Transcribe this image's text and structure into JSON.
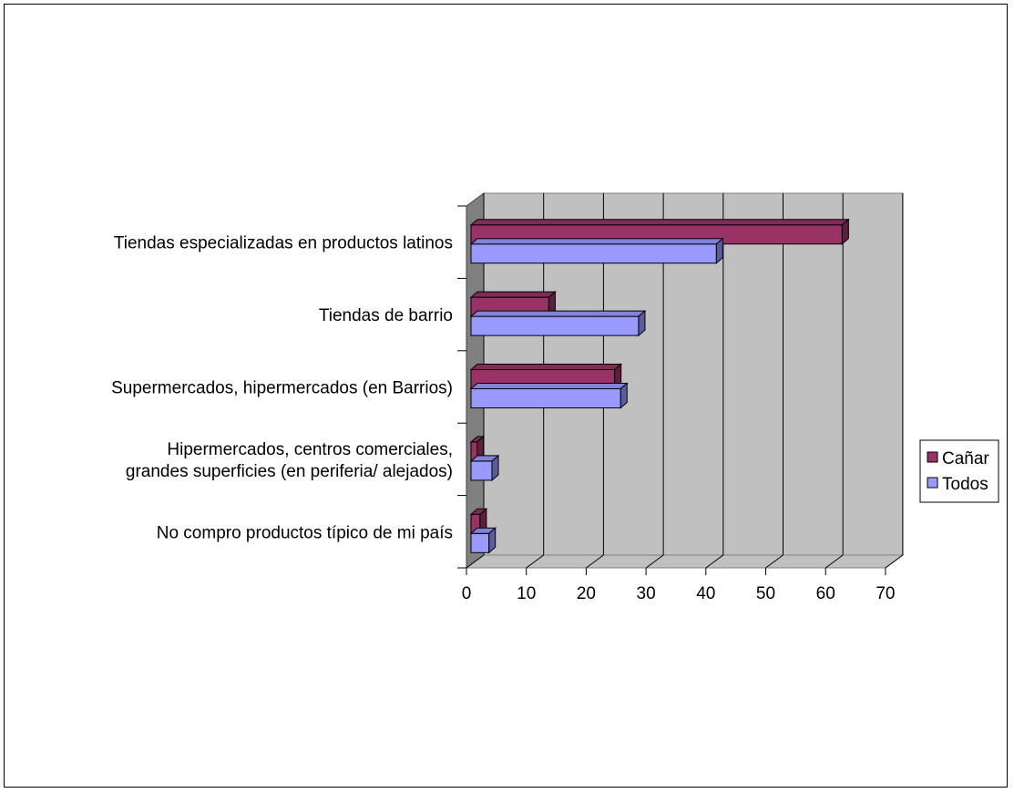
{
  "chart_data": {
    "type": "bar",
    "orientation": "horizontal",
    "three_d": true,
    "categories": [
      "Tiendas especializadas en productos latinos",
      "Tiendas de barrio",
      "Supermercados, hipermercados (en Barrios)",
      "Hipermercados, centros comerciales,\ngrandes superficies (en periferia/ alejados)",
      "No compro productos típico de mi país"
    ],
    "series": [
      {
        "name": "Cañar",
        "color": "#993366",
        "values": [
          62,
          13,
          24,
          1,
          1.5
        ]
      },
      {
        "name": "Todos",
        "color": "#9999FF",
        "values": [
          41,
          28,
          25,
          3.5,
          3
        ]
      }
    ],
    "xlim": [
      0,
      70
    ],
    "xticks": [
      0,
      10,
      20,
      30,
      40,
      50,
      60,
      70
    ],
    "grid": true,
    "wall_color": "#C0C0C0",
    "legend": "right"
  }
}
